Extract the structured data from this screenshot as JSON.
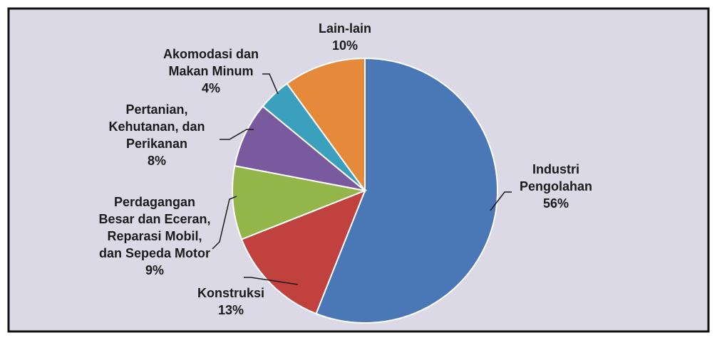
{
  "chart_data": {
    "type": "pie",
    "title": "",
    "legend": "none",
    "slices": [
      {
        "name": "Industri Pengolahan",
        "label_lines": [
          "Industri",
          "Pengolahan"
        ],
        "value": 56,
        "value_label": "56%",
        "color": "#4A78B6"
      },
      {
        "name": "Konstruksi",
        "label_lines": [
          "Konstruksi"
        ],
        "value": 13,
        "value_label": "13%",
        "color": "#C0413D"
      },
      {
        "name": "Perdagangan Besar dan Eceran, Reparasi Mobil, dan Sepeda Motor",
        "label_lines": [
          "Perdagangan",
          "Besar dan Eceran,",
          "Reparasi Mobil,",
          "dan Sepeda Motor"
        ],
        "value": 9,
        "value_label": "9%",
        "color": "#93B549"
      },
      {
        "name": "Pertanian, Kehutanan, dan Perikanan",
        "label_lines": [
          "Pertanian,",
          "Kehutanan, dan",
          "Perikanan"
        ],
        "value": 8,
        "value_label": "8%",
        "color": "#7A5A9E"
      },
      {
        "name": "Akomodasi dan Makan Minum",
        "label_lines": [
          "Akomodasi dan",
          "Makan Minum"
        ],
        "value": 4,
        "value_label": "4%",
        "color": "#3AA0BE"
      },
      {
        "name": "Lain-lain",
        "label_lines": [
          "Lain-lain"
        ],
        "value": 10,
        "value_label": "10%",
        "color": "#E58A3A"
      }
    ]
  },
  "colors": {
    "plot_background": "#DCD9E6",
    "border": "#111111",
    "label_text": "#1a1a1a"
  }
}
